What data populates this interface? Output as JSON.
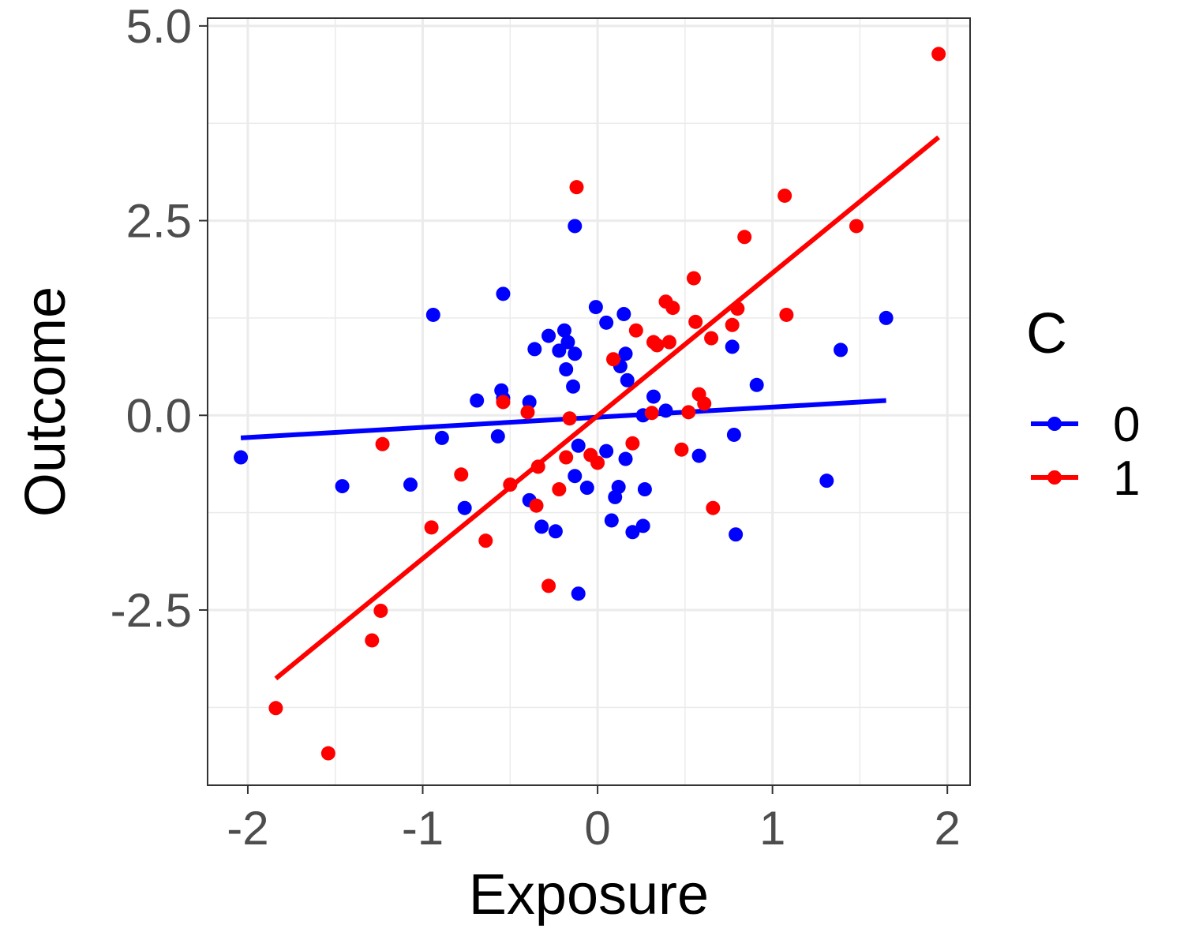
{
  "chart_data": {
    "type": "scatter",
    "title": "",
    "xlabel": "Exposure",
    "ylabel": "Outcome",
    "xlim": [
      -2.23,
      2.13
    ],
    "ylim": [
      -4.75,
      5.1
    ],
    "x_ticks": [
      -2,
      -1,
      0,
      1,
      2
    ],
    "x_tick_labels": [
      "-2",
      "-1",
      "0",
      "1",
      "2"
    ],
    "y_ticks": [
      -2.5,
      0.0,
      2.5,
      5.0
    ],
    "y_tick_labels": [
      "-2.5",
      "0.0",
      "2.5",
      "5.0"
    ],
    "grid": true,
    "legend": {
      "title": "C",
      "position": "right",
      "entries": [
        "0",
        "1"
      ]
    },
    "series": [
      {
        "name": "0",
        "color": "#0000FF",
        "points": [
          [
            -2.04,
            -0.54
          ],
          [
            -1.46,
            -0.91
          ],
          [
            -1.07,
            -0.89
          ],
          [
            -0.94,
            1.29
          ],
          [
            -0.89,
            -0.29
          ],
          [
            -0.76,
            -1.19
          ],
          [
            -0.69,
            0.19
          ],
          [
            -0.57,
            -0.27
          ],
          [
            -0.55,
            0.32
          ],
          [
            -0.54,
            0.22
          ],
          [
            -0.54,
            1.56
          ],
          [
            -0.39,
            0.17
          ],
          [
            -0.39,
            -1.09
          ],
          [
            -0.36,
            0.85
          ],
          [
            -0.32,
            -1.43
          ],
          [
            -0.28,
            1.02
          ],
          [
            -0.24,
            -1.49
          ],
          [
            -0.22,
            0.83
          ],
          [
            -0.19,
            1.09
          ],
          [
            -0.18,
            0.59
          ],
          [
            -0.17,
            0.94
          ],
          [
            -0.14,
            0.37
          ],
          [
            -0.13,
            0.79
          ],
          [
            -0.13,
            2.43
          ],
          [
            -0.13,
            -0.78
          ],
          [
            -0.11,
            -0.39
          ],
          [
            -0.11,
            -2.29
          ],
          [
            -0.06,
            -0.93
          ],
          [
            -0.01,
            1.39
          ],
          [
            0.05,
            1.19
          ],
          [
            0.05,
            -0.46
          ],
          [
            0.08,
            -1.35
          ],
          [
            0.1,
            -1.05
          ],
          [
            0.12,
            -0.92
          ],
          [
            0.13,
            0.63
          ],
          [
            0.15,
            1.3
          ],
          [
            0.16,
            -0.56
          ],
          [
            0.16,
            0.79
          ],
          [
            0.17,
            0.45
          ],
          [
            0.2,
            -1.5
          ],
          [
            0.26,
            -1.42
          ],
          [
            0.26,
            0.0
          ],
          [
            0.27,
            -0.95
          ],
          [
            0.32,
            0.24
          ],
          [
            0.39,
            0.06
          ],
          [
            0.58,
            -0.52
          ],
          [
            0.77,
            0.88
          ],
          [
            0.78,
            -0.25
          ],
          [
            0.79,
            -1.53
          ],
          [
            0.91,
            0.39
          ],
          [
            1.31,
            -0.84
          ],
          [
            1.39,
            0.84
          ],
          [
            1.65,
            1.25
          ]
        ]
      },
      {
        "name": "1",
        "color": "#FF0000",
        "points": [
          [
            -1.84,
            -3.76
          ],
          [
            -1.54,
            -4.34
          ],
          [
            -1.29,
            -2.89
          ],
          [
            -1.24,
            -2.51
          ],
          [
            -1.23,
            -0.37
          ],
          [
            -0.95,
            -1.44
          ],
          [
            -0.78,
            -0.76
          ],
          [
            -0.64,
            -1.61
          ],
          [
            -0.54,
            0.17
          ],
          [
            -0.5,
            -0.89
          ],
          [
            -0.4,
            0.04
          ],
          [
            -0.35,
            -1.16
          ],
          [
            -0.34,
            -0.66
          ],
          [
            -0.28,
            -2.19
          ],
          [
            -0.22,
            -0.95
          ],
          [
            -0.18,
            -0.54
          ],
          [
            -0.16,
            -0.04
          ],
          [
            -0.12,
            2.93
          ],
          [
            -0.04,
            -0.51
          ],
          [
            0.0,
            -0.61
          ],
          [
            0.09,
            0.72
          ],
          [
            0.2,
            -0.36
          ],
          [
            0.22,
            1.09
          ],
          [
            0.31,
            0.03
          ],
          [
            0.32,
            0.94
          ],
          [
            0.34,
            0.9
          ],
          [
            0.39,
            1.46
          ],
          [
            0.41,
            0.94
          ],
          [
            0.43,
            1.38
          ],
          [
            0.48,
            -0.44
          ],
          [
            0.52,
            0.04
          ],
          [
            0.55,
            1.76
          ],
          [
            0.56,
            1.2
          ],
          [
            0.58,
            0.27
          ],
          [
            0.61,
            0.15
          ],
          [
            0.65,
            0.99
          ],
          [
            0.66,
            -1.19
          ],
          [
            0.77,
            1.16
          ],
          [
            0.8,
            1.37
          ],
          [
            0.84,
            2.29
          ],
          [
            1.07,
            2.82
          ],
          [
            1.08,
            1.29
          ],
          [
            1.48,
            2.43
          ],
          [
            1.95,
            4.64
          ]
        ]
      }
    ],
    "fit_lines": [
      {
        "series": "0",
        "color": "#0000FF",
        "x": [
          -2.04,
          1.65
        ],
        "y": [
          -0.29,
          0.19
        ]
      },
      {
        "series": "1",
        "color": "#FF0000",
        "x": [
          -1.84,
          1.95
        ],
        "y": [
          -3.38,
          3.57
        ]
      }
    ]
  }
}
